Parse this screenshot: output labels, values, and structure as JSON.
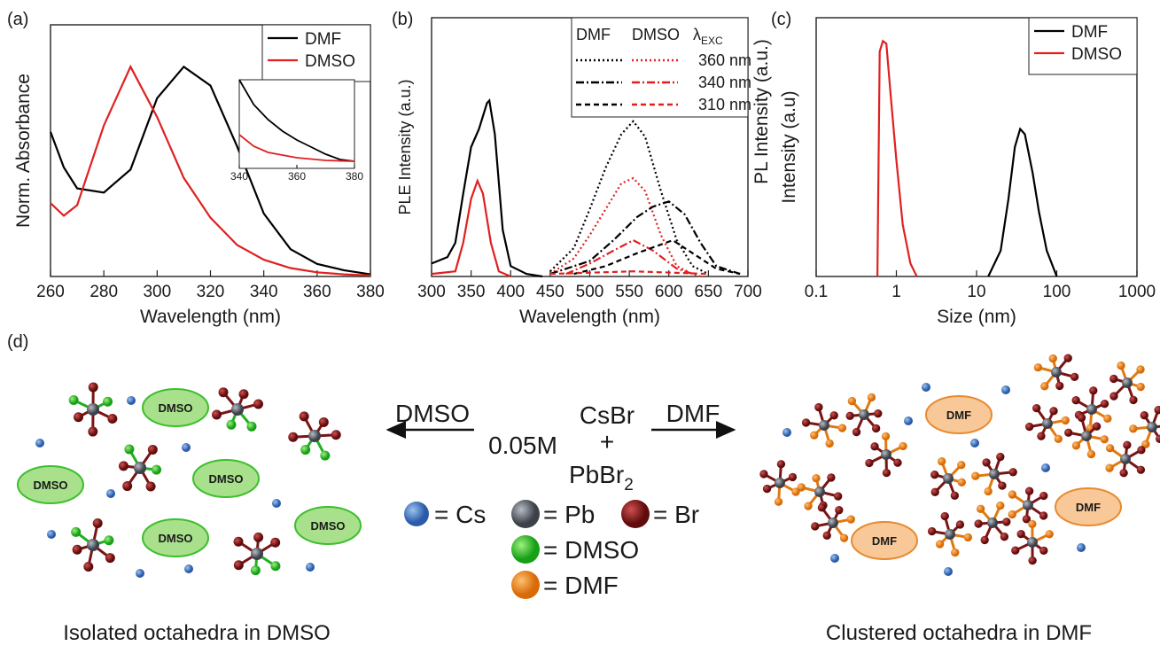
{
  "chart_data": [
    {
      "type": "line",
      "panel_label": "(a)",
      "xlabel": "Wavelength (nm)",
      "ylabel": "Norm. Absorbance",
      "xlim": [
        260,
        380
      ],
      "xticks": [
        260,
        280,
        300,
        320,
        340,
        360,
        380
      ],
      "ylim": [
        0,
        1.2
      ],
      "legend": "upper right",
      "series": [
        {
          "name": "DMF",
          "color": "#000000",
          "dash": "solid",
          "x": [
            260,
            265,
            270,
            280,
            290,
            300,
            310,
            320,
            330,
            340,
            350,
            360,
            370,
            380
          ],
          "values": [
            0.69,
            0.52,
            0.42,
            0.4,
            0.51,
            0.85,
            1.0,
            0.91,
            0.62,
            0.3,
            0.13,
            0.06,
            0.03,
            0.01
          ]
        },
        {
          "name": "DMSO",
          "color": "#e02020",
          "dash": "solid",
          "x": [
            260,
            265,
            270,
            280,
            290,
            300,
            310,
            320,
            330,
            340,
            350,
            360,
            370,
            380
          ],
          "values": [
            0.35,
            0.29,
            0.34,
            0.72,
            1.0,
            0.76,
            0.47,
            0.28,
            0.15,
            0.08,
            0.04,
            0.02,
            0.01,
            0.005
          ]
        }
      ]
    },
    {
      "type": "line",
      "inset": true,
      "xlim": [
        340,
        380
      ],
      "xticks": [
        340,
        360,
        380
      ],
      "ylim": [
        0,
        1
      ],
      "series": [
        {
          "color": "#000000",
          "dash": "solid",
          "x": [
            340,
            345,
            350,
            355,
            360,
            365,
            370,
            375,
            380
          ],
          "values": [
            1.0,
            0.72,
            0.55,
            0.42,
            0.32,
            0.24,
            0.16,
            0.1,
            0.08
          ]
        },
        {
          "color": "#e02020",
          "dash": "solid",
          "x": [
            340,
            345,
            350,
            360,
            370,
            380
          ],
          "values": [
            0.38,
            0.25,
            0.18,
            0.12,
            0.09,
            0.08
          ]
        }
      ]
    },
    {
      "type": "line",
      "panel_label": "(b)",
      "xlabel": "Wavelength (nm)",
      "ylabel": "PLE Intensity (a.u.)",
      "y2label": "PL Intensity (a.u.)",
      "xlim": [
        300,
        700
      ],
      "xticks": [
        300,
        350,
        400,
        450,
        500,
        550,
        600,
        650,
        700
      ],
      "ylim": [
        0,
        1
      ],
      "legend_columns": [
        "DMF",
        "DMSO"
      ],
      "legend_header": {
        "text": "λ",
        "subscript": "EXC"
      },
      "legend_rows": [
        "360 nm",
        "340 nm",
        "310 nm"
      ],
      "series": [
        {
          "color": "#000000",
          "dash": "solid",
          "x": [
            300,
            320,
            330,
            340,
            350,
            360,
            365,
            370,
            373,
            380,
            390,
            400,
            420,
            440
          ],
          "values": [
            0.05,
            0.075,
            0.13,
            0.32,
            0.5,
            0.57,
            0.62,
            0.67,
            0.68,
            0.55,
            0.18,
            0.04,
            0.01,
            0
          ]
        },
        {
          "color": "#e02020",
          "dash": "solid",
          "x": [
            300,
            330,
            340,
            350,
            358,
            365,
            375,
            385,
            400
          ],
          "values": [
            0.01,
            0.02,
            0.13,
            0.3,
            0.37,
            0.32,
            0.13,
            0.02,
            0
          ]
        },
        {
          "color": "#000000",
          "dash": "dotted",
          "legend_row": 0,
          "legend_col": 0,
          "x": [
            450,
            480,
            500,
            520,
            540,
            555,
            570,
            590,
            610,
            630,
            650
          ],
          "values": [
            0.02,
            0.11,
            0.26,
            0.42,
            0.55,
            0.6,
            0.54,
            0.33,
            0.14,
            0.04,
            0.01
          ]
        },
        {
          "color": "#e02020",
          "dash": "dotted",
          "legend_row": 0,
          "legend_col": 1,
          "x": [
            450,
            480,
            500,
            520,
            540,
            555,
            570,
            590,
            610,
            630
          ],
          "values": [
            0.01,
            0.07,
            0.16,
            0.26,
            0.36,
            0.38,
            0.33,
            0.16,
            0.04,
            0.01
          ]
        },
        {
          "color": "#000000",
          "dash": "dashdot",
          "legend_row": 1,
          "legend_col": 0,
          "x": [
            450,
            500,
            530,
            560,
            580,
            600,
            620,
            640,
            660,
            690
          ],
          "values": [
            0.01,
            0.06,
            0.14,
            0.23,
            0.27,
            0.29,
            0.24,
            0.13,
            0.04,
            0.01
          ]
        },
        {
          "color": "#e02020",
          "dash": "dashdot",
          "legend_row": 1,
          "legend_col": 1,
          "x": [
            470,
            500,
            530,
            555,
            580,
            610,
            640
          ],
          "values": [
            0.01,
            0.05,
            0.1,
            0.14,
            0.1,
            0.03,
            0
          ]
        },
        {
          "color": "#000000",
          "dash": "dashed",
          "legend_row": 2,
          "legend_col": 0,
          "x": [
            480,
            520,
            560,
            605,
            630,
            660,
            690
          ],
          "values": [
            0.01,
            0.04,
            0.09,
            0.14,
            0.09,
            0.03,
            0.01
          ]
        },
        {
          "color": "#e02020",
          "dash": "dashed",
          "legend_row": 2,
          "legend_col": 1,
          "x": [
            450,
            555,
            650
          ],
          "values": [
            0.01,
            0.02,
            0.01
          ]
        }
      ]
    },
    {
      "type": "line",
      "panel_label": "(c)",
      "xlabel": "Size (nm)",
      "ylabel": "Intensity (a.u)",
      "xscale": "log",
      "xlim": [
        0.1,
        1000
      ],
      "xticks": [
        0.1,
        1,
        10,
        100,
        1000
      ],
      "ylim": [
        0,
        1
      ],
      "legend": "upper right",
      "series": [
        {
          "name": "DMF",
          "color": "#000000",
          "dash": "solid",
          "x": [
            14,
            20,
            25,
            30,
            35,
            40,
            50,
            60,
            75,
            100
          ],
          "values": [
            0,
            0.1,
            0.3,
            0.5,
            0.57,
            0.55,
            0.4,
            0.25,
            0.1,
            0
          ]
        },
        {
          "name": "DMSO",
          "color": "#e02020",
          "dash": "solid",
          "x": [
            0.58,
            0.62,
            0.68,
            0.75,
            0.85,
            1.0,
            1.2,
            1.5,
            1.8
          ],
          "values": [
            0,
            0.87,
            0.91,
            0.9,
            0.7,
            0.45,
            0.2,
            0.05,
            0
          ]
        }
      ]
    }
  ],
  "scheme": {
    "panel_label": "(d)",
    "left_arrow": "DMSO",
    "right_arrow": "DMF",
    "concentration": "0.05M",
    "reactant_1": "CsBr",
    "plus": "+",
    "reactant_2": {
      "text": "PbBr",
      "subscript": "2"
    },
    "legend": [
      "= Cs",
      "= Pb",
      "= Br",
      "= DMSO",
      "= DMF"
    ],
    "left_solvent_labels": [
      "DMSO",
      "DMSO",
      "DMSO",
      "DMSO",
      "DMSO"
    ],
    "right_solvent_labels": [
      "DMF",
      "DMF",
      "DMF"
    ],
    "left_caption": "Isolated octahedra in DMSO",
    "right_caption": "Clustered octahedra in DMF"
  }
}
